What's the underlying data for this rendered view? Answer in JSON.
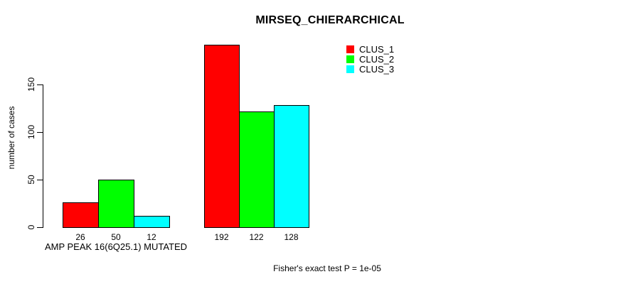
{
  "chart_data": {
    "type": "bar",
    "title": "MIRSEQ_CHIERARCHICAL",
    "ylabel": "number of cases",
    "xlabel": "AMP PEAK 16(6Q25.1) MUTATED",
    "annotation": "Fisher's exact test P = 1e-05",
    "ylim": [
      0,
      150
    ],
    "yticks": [
      0,
      50,
      100,
      150
    ],
    "categories": [
      "AMP PEAK 16(6Q25.1) MUTATED",
      ""
    ],
    "series": [
      {
        "name": "CLUS_1",
        "color": "#ff0000",
        "values": [
          26,
          192
        ]
      },
      {
        "name": "CLUS_2",
        "color": "#00ff00",
        "values": [
          50,
          122
        ]
      },
      {
        "name": "CLUS_3",
        "color": "#00ffff",
        "values": [
          12,
          128
        ]
      }
    ],
    "bar_value_labels": [
      [
        26,
        50,
        12
      ],
      [
        192,
        122,
        128
      ]
    ],
    "legend_position": "top-right",
    "grid": false,
    "axis_color": "#000000",
    "text_color": "#000000",
    "background": "#ffffff"
  }
}
